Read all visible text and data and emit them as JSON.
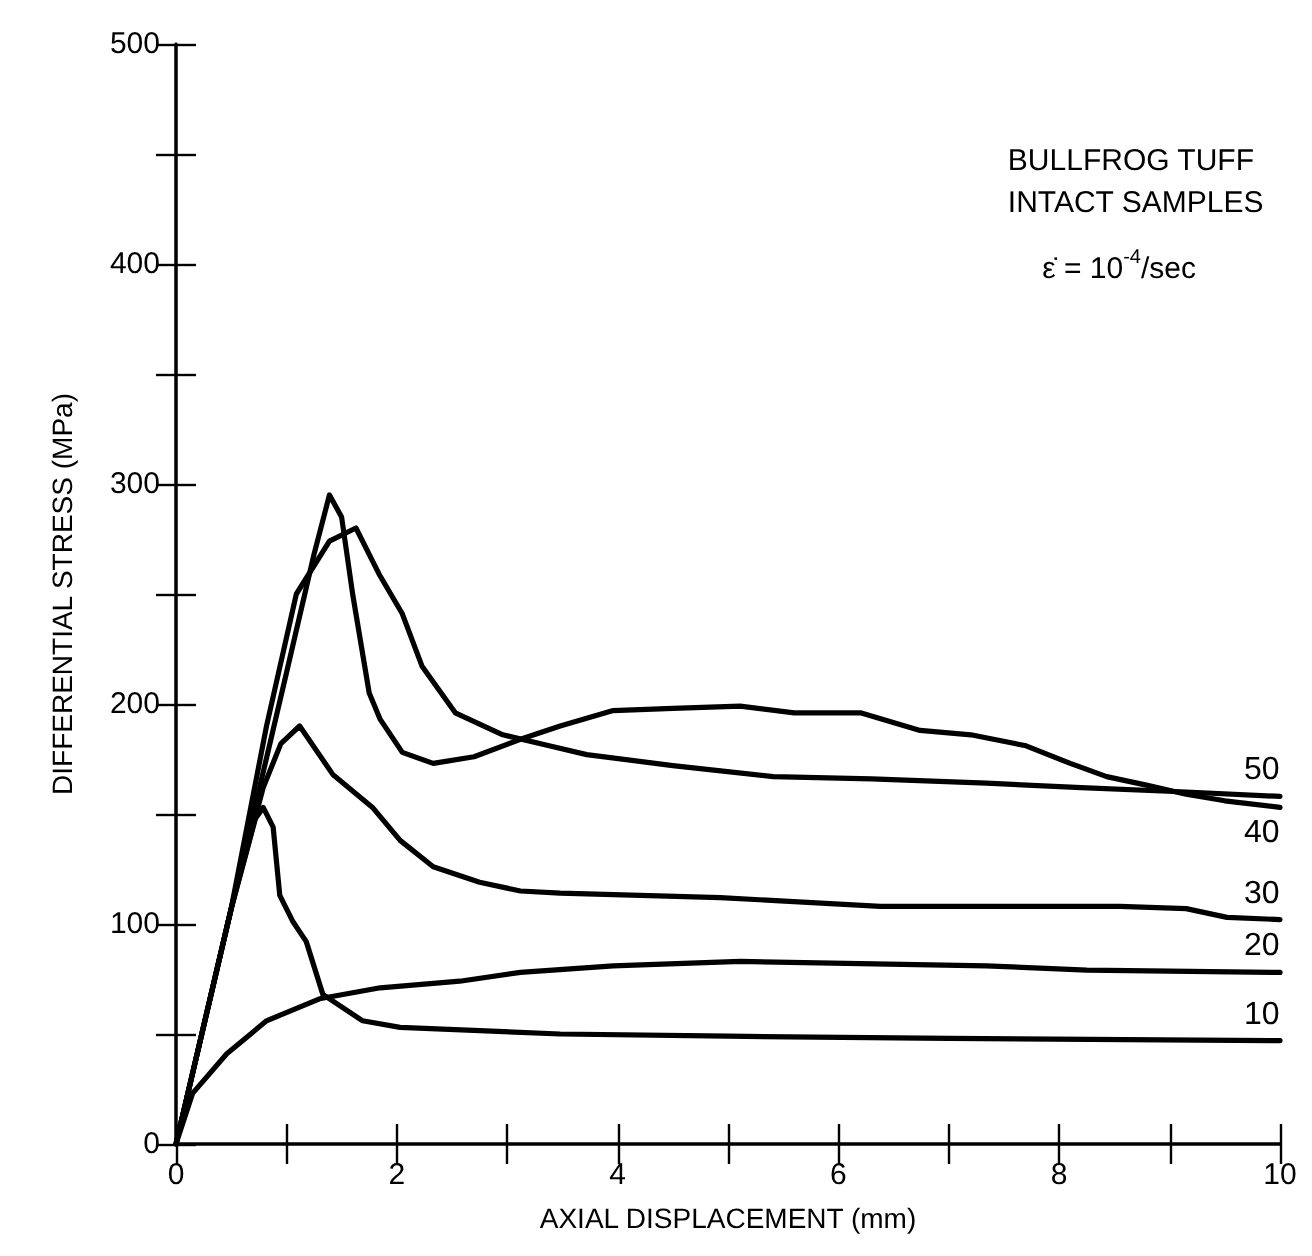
{
  "chart_data": {
    "type": "line",
    "xlabel": "AXIAL DISPLACEMENT (mm)",
    "ylabel": "DIFFERENTIAL STRESS (MPa)",
    "annotations": [
      "BULLFROG TUFF\nINTACT SAMPLES",
      "ε̇ = 10$^{-4}$/sec"
    ],
    "xlim": [
      0,
      10
    ],
    "ylim": [
      0,
      500
    ],
    "xticks": [
      0,
      {
        "value": 1,
        "label": null
      },
      2,
      {
        "value": 3,
        "label": null
      },
      4,
      {
        "value": 5,
        "label": null
      },
      6,
      {
        "value": 7,
        "label": null
      },
      8,
      {
        "value": 9,
        "label": null
      },
      10
    ],
    "yticks": [
      0,
      {
        "value": 50,
        "label": null
      },
      100,
      {
        "value": 150,
        "label": null
      },
      200,
      {
        "value": 250,
        "label": null
      },
      300,
      {
        "value": 350,
        "label": null
      },
      400,
      {
        "value": 450,
        "label": null
      },
      500
    ],
    "grid": false,
    "legend": false,
    "marker": "none",
    "line_style": "solid",
    "series": [
      {
        "name": "50",
        "color": "#000000",
        "x": [
          0,
          0.5,
          0.82,
          1.09,
          1.39,
          1.63,
          1.84,
          2.05,
          2.23,
          2.53,
          2.96,
          3.38,
          3.72,
          4.5,
          5.41,
          6.3,
          7.34,
          8.2,
          9.15,
          10
        ],
        "values": [
          0,
          107,
          190,
          250,
          274,
          280,
          259,
          241,
          217,
          196,
          186,
          181,
          177,
          172,
          167,
          166,
          164,
          162,
          160,
          158
        ]
      },
      {
        "name": "40",
        "color": "#000000",
        "x": [
          0,
          0.5,
          1.0,
          1.25,
          1.39,
          1.5,
          1.6,
          1.67,
          1.75,
          1.85,
          2.05,
          2.33,
          2.7,
          3.12,
          3.48,
          3.96,
          4.5,
          5.11,
          5.6,
          6.2,
          6.74,
          7.2,
          7.7,
          8.1,
          8.43,
          8.8,
          9.15,
          9.5,
          10
        ],
        "values": [
          0,
          107,
          214,
          268,
          295,
          285,
          250,
          229,
          205,
          193,
          178,
          173,
          176,
          184,
          190,
          197,
          198,
          199,
          196,
          196,
          188,
          186,
          181,
          173,
          167,
          163,
          159,
          156,
          153
        ]
      },
      {
        "name": "30",
        "color": "#000000",
        "x": [
          0,
          0.5,
          0.79,
          0.95,
          1.12,
          1.42,
          1.78,
          2.03,
          2.33,
          2.75,
          3.12,
          3.48,
          4.93,
          6.38,
          8.55,
          9.15,
          9.52,
          10
        ],
        "values": [
          0,
          107,
          162,
          182,
          190,
          168,
          153,
          138,
          126,
          119,
          115,
          114,
          112,
          108,
          108,
          107,
          103,
          102
        ]
      },
      {
        "name": "20",
        "color": "#000000",
        "x": [
          0,
          0.15,
          0.46,
          0.82,
          1.3,
          1.85,
          2.57,
          3.12,
          3.96,
          5.11,
          6.2,
          7.34,
          8.25,
          10
        ],
        "values": [
          0,
          23,
          41,
          56,
          66,
          71,
          74,
          78,
          81,
          83,
          82,
          81,
          79,
          78
        ]
      },
      {
        "name": "10",
        "color": "#000000",
        "x": [
          0,
          0.5,
          0.72,
          0.79,
          0.88,
          0.94,
          1.06,
          1.18,
          1.33,
          1.69,
          2.03,
          3.48,
          5.0,
          7.0,
          10
        ],
        "values": [
          0,
          107,
          148,
          153,
          144,
          113,
          101,
          92,
          68,
          56,
          53,
          50,
          49,
          48,
          47
        ]
      }
    ]
  }
}
